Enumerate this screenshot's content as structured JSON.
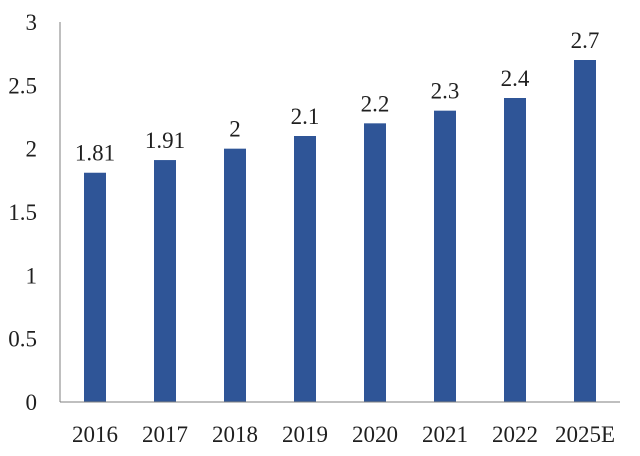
{
  "colors": {
    "bar": "#2f5597",
    "axis": "#7f7f7f",
    "text": "#1f1f1f"
  },
  "chart_data": {
    "type": "bar",
    "title": "",
    "xlabel": "",
    "ylabel": "",
    "categories": [
      "2016",
      "2017",
      "2018",
      "2019",
      "2020",
      "2021",
      "2022",
      "2025E"
    ],
    "values": [
      1.81,
      1.91,
      2,
      2.1,
      2.2,
      2.3,
      2.4,
      2.7
    ],
    "data_labels": [
      "1.81",
      "1.91",
      "2",
      "2.1",
      "2.2",
      "2.3",
      "2.4",
      "2.7"
    ],
    "ylim": [
      0,
      3
    ],
    "yticks": [
      "0",
      "0.5",
      "1",
      "1.5",
      "2",
      "2.5",
      "3"
    ],
    "grid": false,
    "legend": "none"
  }
}
